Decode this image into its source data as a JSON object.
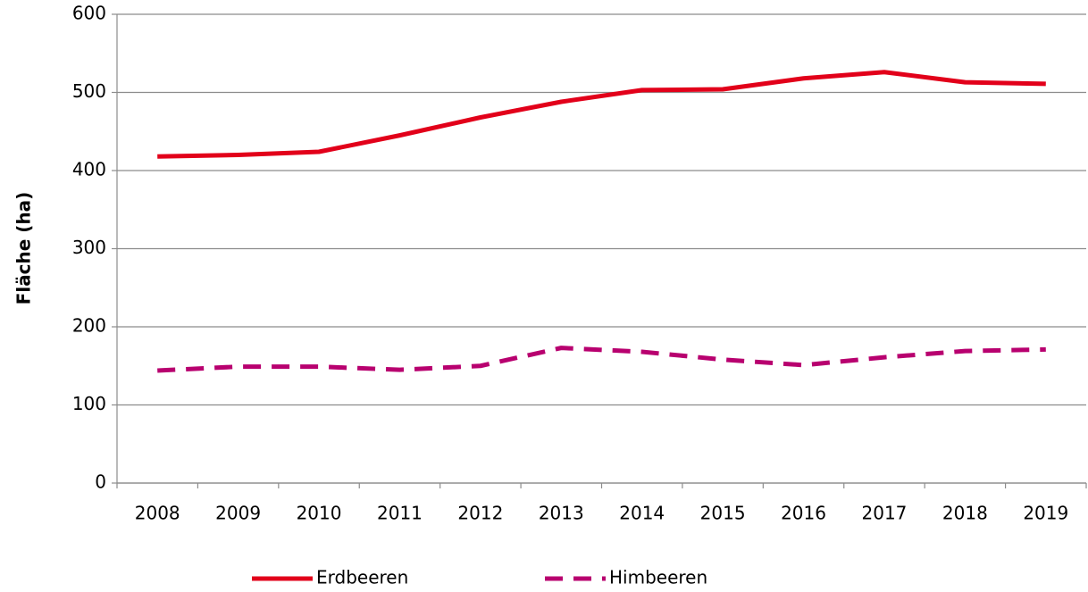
{
  "chart_data": {
    "type": "line",
    "y_label": "Fläche (ha)",
    "categories": [
      "2008",
      "2009",
      "2010",
      "2011",
      "2012",
      "2013",
      "2014",
      "2015",
      "2016",
      "2017",
      "2018",
      "2019"
    ],
    "series": [
      {
        "name": "Erdbeeren",
        "color": "#e2001a",
        "dash": false,
        "values": [
          418,
          420,
          424,
          445,
          468,
          488,
          503,
          504,
          518,
          526,
          513,
          511
        ]
      },
      {
        "name": "Himbeeren",
        "color": "#b8006f",
        "dash": true,
        "values": [
          144,
          149,
          149,
          145,
          150,
          173,
          168,
          158,
          151,
          161,
          169,
          171
        ]
      }
    ],
    "ylim": [
      0,
      600
    ],
    "yticks": [
      0,
      100,
      200,
      300,
      400,
      500,
      600
    ],
    "grid": true,
    "legend": "bottom"
  }
}
